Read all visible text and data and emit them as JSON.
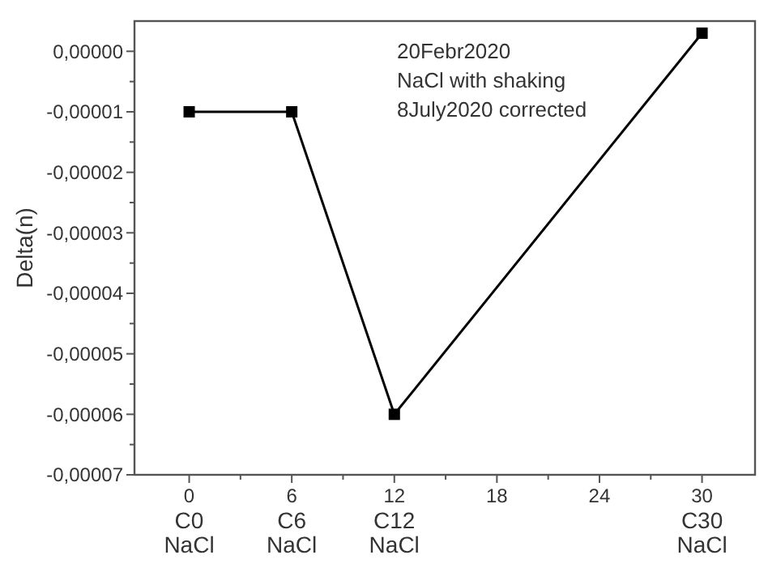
{
  "chart_data": {
    "type": "line",
    "ylabel": "Delta(n)",
    "x": [
      0,
      6,
      12,
      30
    ],
    "series": [
      {
        "color": "#000000",
        "values": [
          -1e-05,
          -1e-05,
          -6e-05,
          3e-06
        ]
      }
    ],
    "marker": "square",
    "line_style": "solid",
    "xlim": [
      -3.2,
      33.1
    ],
    "xticks": [
      {
        "value": 0,
        "label": "0\nC0\nNaCl"
      },
      {
        "value": 3,
        "label": null
      },
      {
        "value": 6,
        "label": "6\nC6\nNaCl"
      },
      {
        "value": 9,
        "label": null
      },
      {
        "value": 12,
        "label": "12\nC12\nNaCl"
      },
      {
        "value": 15,
        "label": null
      },
      18,
      {
        "value": 21,
        "label": null
      },
      24,
      {
        "value": 27,
        "label": null
      },
      {
        "value": 30,
        "label": "30\nC30\nNaCl"
      }
    ],
    "ylim": [
      -7e-05,
      5e-06
    ],
    "yticks": [
      {
        "value": 0,
        "label": "0,00000"
      },
      {
        "value": -5e-06,
        "label": null
      },
      {
        "value": -1e-05,
        "label": "-0,00001"
      },
      {
        "value": -1.5e-05,
        "label": null
      },
      {
        "value": -2e-05,
        "label": "-0,00002"
      },
      {
        "value": -2.5e-05,
        "label": null
      },
      {
        "value": -3e-05,
        "label": "-0,00003"
      },
      {
        "value": -3.5e-05,
        "label": null
      },
      {
        "value": -4e-05,
        "label": "-0,00004"
      },
      {
        "value": -4.5e-05,
        "label": null
      },
      {
        "value": -5e-05,
        "label": "-0,00005"
      },
      {
        "value": -5.5e-05,
        "label": null
      },
      {
        "value": -6e-05,
        "label": "-0,00006"
      },
      {
        "value": -6.5e-05,
        "label": null
      },
      {
        "value": -7e-05,
        "label": "-0,00007"
      }
    ],
    "annotations": [
      "20Febr2020",
      "NaCl with shaking",
      "8July2020 corrected"
    ]
  }
}
